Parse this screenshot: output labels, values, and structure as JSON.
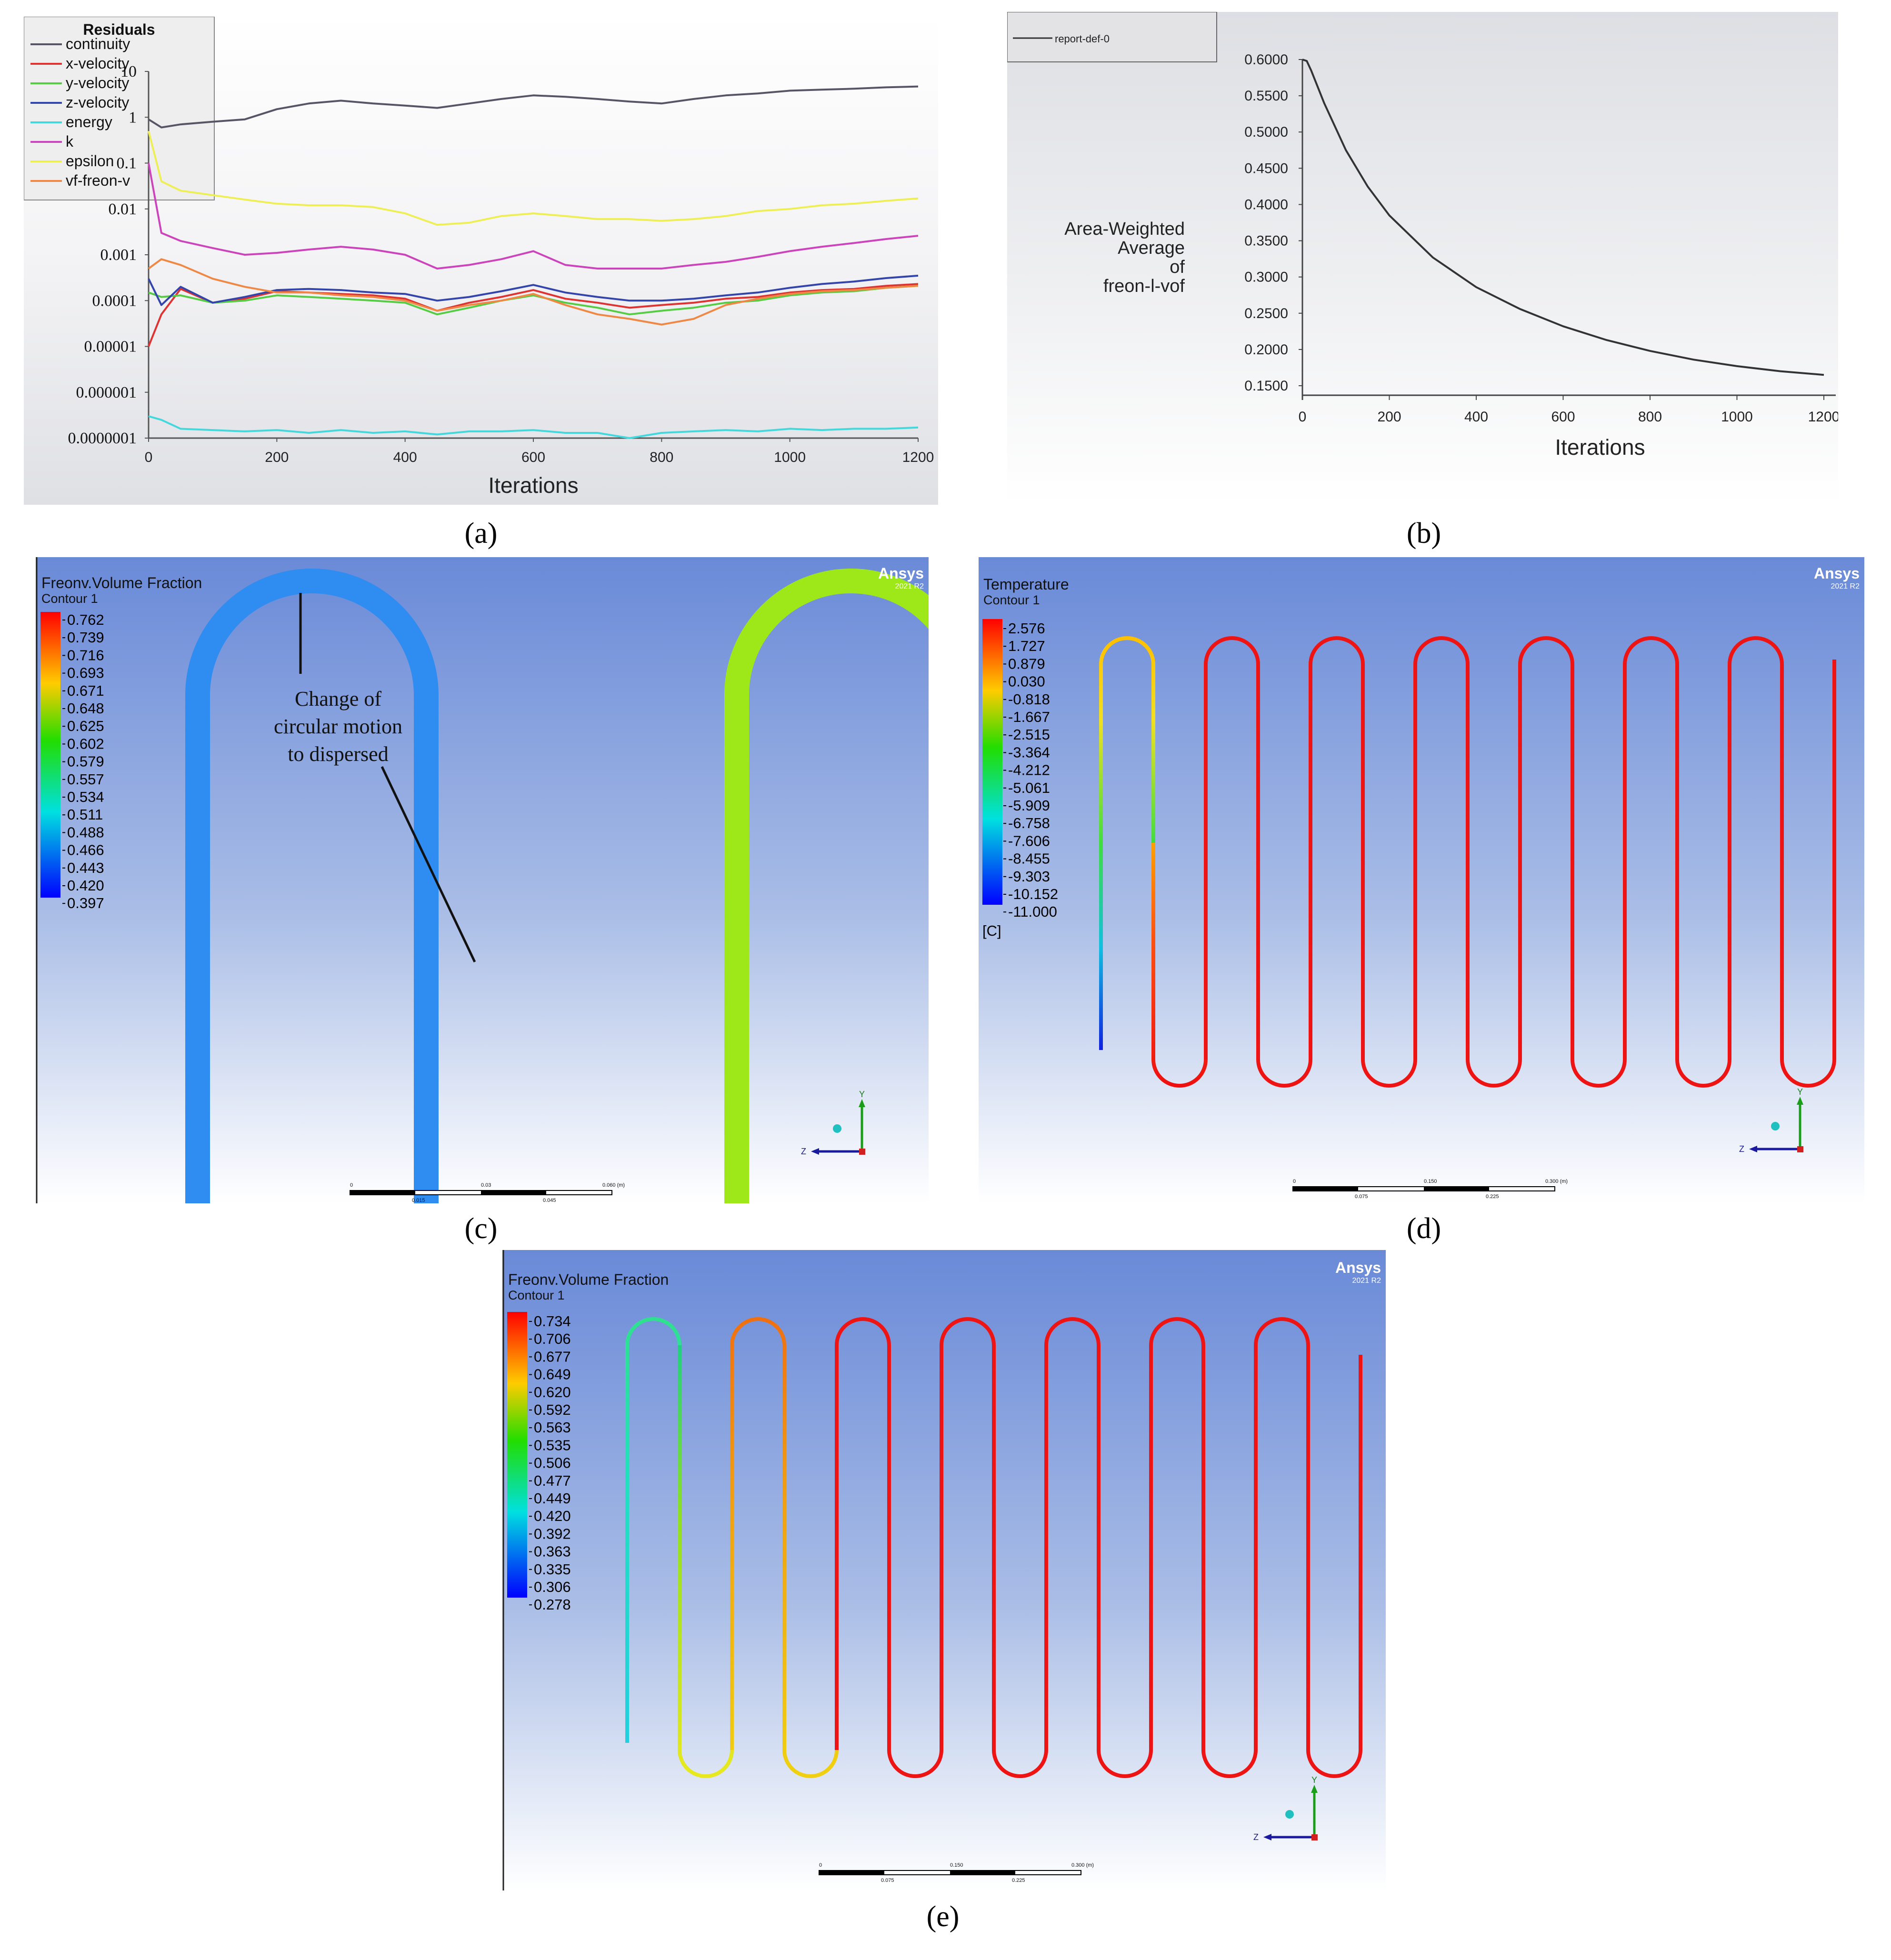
{
  "captions": {
    "a": "(a)",
    "b": "(b)",
    "c": "(c)",
    "d": "(d)",
    "e": "(e)"
  },
  "chart_data": [
    {
      "id": "a",
      "type": "line",
      "yscale": "log",
      "title": "Residuals",
      "xlabel": "Iterations",
      "ylabel": "",
      "xlim": [
        0,
        1200
      ],
      "ylim": [
        1e-07,
        10
      ],
      "x_ticks": [
        "0",
        "200",
        "400",
        "600",
        "800",
        "1000",
        "1200"
      ],
      "y_ticks": [
        "10",
        "1",
        "0.1",
        "0.01",
        "0.001",
        "0.0001",
        "0.00001",
        "0.000001",
        "0.0000001"
      ],
      "x": [
        0,
        20,
        50,
        100,
        150,
        200,
        250,
        300,
        350,
        400,
        450,
        500,
        550,
        600,
        650,
        700,
        750,
        800,
        850,
        900,
        950,
        1000,
        1050,
        1100,
        1150,
        1200
      ],
      "series": [
        {
          "name": "continuity",
          "color": "#555566",
          "values": [
            0.9,
            0.6,
            0.7,
            0.8,
            0.9,
            1.5,
            2,
            2.3,
            2,
            1.8,
            1.6,
            2,
            2.5,
            3,
            2.8,
            2.5,
            2.2,
            2,
            2.5,
            3,
            3.3,
            3.8,
            4,
            4.2,
            4.5,
            4.7
          ]
        },
        {
          "name": "x-velocity",
          "color": "#dd3333",
          "values": [
            1e-05,
            5e-05,
            0.00018,
            9e-05,
            0.00011,
            0.00016,
            0.00015,
            0.00014,
            0.00013,
            0.00011,
            6e-05,
            9e-05,
            0.00012,
            0.00017,
            0.00011,
            9e-05,
            7e-05,
            8e-05,
            9e-05,
            0.00011,
            0.00012,
            0.00015,
            0.00017,
            0.00018,
            0.00021,
            0.00023
          ]
        },
        {
          "name": "y-velocity",
          "color": "#55cc44",
          "values": [
            0.00015,
            0.00012,
            0.00013,
            9e-05,
            0.0001,
            0.00013,
            0.00012,
            0.00011,
            0.0001,
            9e-05,
            5e-05,
            7e-05,
            0.0001,
            0.00013,
            9e-05,
            7e-05,
            5e-05,
            6e-05,
            7e-05,
            9e-05,
            0.0001,
            0.00013,
            0.00015,
            0.00016,
            0.00019,
            0.00021
          ]
        },
        {
          "name": "z-velocity",
          "color": "#3344aa",
          "values": [
            0.0003,
            8e-05,
            0.0002,
            9e-05,
            0.00012,
            0.00017,
            0.00018,
            0.00017,
            0.00015,
            0.00014,
            0.0001,
            0.00012,
            0.00016,
            0.00022,
            0.00015,
            0.00012,
            0.0001,
            0.0001,
            0.00011,
            0.00013,
            0.00015,
            0.00019,
            0.00023,
            0.00026,
            0.00031,
            0.00035
          ]
        },
        {
          "name": "energy",
          "color": "#44d8dd",
          "values": [
            3e-07,
            2.5e-07,
            1.6e-07,
            1.5e-07,
            1.4e-07,
            1.5e-07,
            1.3e-07,
            1.5e-07,
            1.3e-07,
            1.4e-07,
            1.2e-07,
            1.4e-07,
            1.4e-07,
            1.5e-07,
            1.3e-07,
            1.3e-07,
            1e-07,
            1.3e-07,
            1.4e-07,
            1.5e-07,
            1.4e-07,
            1.6e-07,
            1.5e-07,
            1.6e-07,
            1.6e-07,
            1.7e-07
          ]
        },
        {
          "name": "k",
          "color": "#cc44bb",
          "values": [
            0.1,
            0.003,
            0.002,
            0.0014,
            0.001,
            0.0011,
            0.0013,
            0.0015,
            0.0013,
            0.001,
            0.0005,
            0.0006,
            0.0008,
            0.0012,
            0.0006,
            0.0005,
            0.0005,
            0.0005,
            0.0006,
            0.0007,
            0.0009,
            0.0012,
            0.0015,
            0.0018,
            0.0022,
            0.0026
          ]
        },
        {
          "name": "epsilon",
          "color": "#eeee55",
          "values": [
            0.5,
            0.04,
            0.025,
            0.02,
            0.016,
            0.013,
            0.012,
            0.012,
            0.011,
            0.008,
            0.0045,
            0.005,
            0.007,
            0.008,
            0.007,
            0.006,
            0.006,
            0.0055,
            0.006,
            0.007,
            0.009,
            0.01,
            0.012,
            0.013,
            0.015,
            0.017
          ]
        },
        {
          "name": "vf-freon-v",
          "color": "#ee8844",
          "values": [
            0.0005,
            0.0008,
            0.0006,
            0.0003,
            0.0002,
            0.00015,
            0.00015,
            0.00013,
            0.00012,
            0.0001,
            6e-05,
            8e-05,
            0.0001,
            0.00014,
            8e-05,
            5e-05,
            4e-05,
            3e-05,
            4e-05,
            8e-05,
            0.00011,
            0.00014,
            0.00016,
            0.00017,
            0.00019,
            0.00021
          ]
        }
      ]
    },
    {
      "id": "b",
      "type": "line",
      "title": "",
      "legend": [
        "report-def-0"
      ],
      "xlabel": "Iterations",
      "ylabel": "Area-Weighted Average of freon-l-vof",
      "ylabel_lines": [
        "Area-Weighted",
        "Average",
        "of",
        "freon-l-vof"
      ],
      "xlim": [
        0,
        1200
      ],
      "ylim": [
        0.15,
        0.6
      ],
      "x_ticks": [
        "0",
        "200",
        "400",
        "600",
        "800",
        "1000",
        "1200"
      ],
      "y_ticks": [
        "0.6000",
        "0.5500",
        "0.5000",
        "0.4500",
        "0.4000",
        "0.3500",
        "0.3000",
        "0.2500",
        "0.2000",
        "0.1500"
      ],
      "x": [
        0,
        10,
        20,
        50,
        100,
        150,
        200,
        300,
        400,
        500,
        600,
        700,
        800,
        900,
        1000,
        1100,
        1200
      ],
      "series": [
        {
          "name": "report-def-0",
          "color": "#333333",
          "values": [
            0.6,
            0.598,
            0.585,
            0.54,
            0.475,
            0.425,
            0.385,
            0.327,
            0.286,
            0.256,
            0.232,
            0.213,
            0.198,
            0.186,
            0.177,
            0.17,
            0.165
          ]
        }
      ]
    }
  ],
  "contour_c": {
    "title": "Freonv.Volume Fraction",
    "subtitle": "Contour 1",
    "levels": [
      "0.762",
      "0.739",
      "0.716",
      "0.693",
      "0.671",
      "0.648",
      "0.625",
      "0.602",
      "0.579",
      "0.557",
      "0.534",
      "0.511",
      "0.488",
      "0.466",
      "0.443",
      "0.420",
      "0.397"
    ],
    "annotation": [
      "Change of",
      "circular motion",
      "to dispersed"
    ],
    "brand": "Ansys",
    "version": "2021 R2",
    "scale_top": [
      "0",
      "0.03",
      "0.060 (m)"
    ],
    "scale_bottom": [
      "0.015",
      "0.045"
    ]
  },
  "contour_d": {
    "title": "Temperature",
    "subtitle": "Contour 1",
    "levels": [
      "2.576",
      "1.727",
      "0.879",
      "0.030",
      "-0.818",
      "-1.667",
      "-2.515",
      "-3.364",
      "-4.212",
      "-5.061",
      "-5.909",
      "-6.758",
      "-7.606",
      "-8.455",
      "-9.303",
      "-10.152",
      "-11.000"
    ],
    "unit": "[C]",
    "brand": "Ansys",
    "version": "2021 R2",
    "scale_top": [
      "0",
      "0.150",
      "0.300 (m)"
    ],
    "scale_bottom": [
      "0.075",
      "0.225"
    ]
  },
  "contour_e": {
    "title": "Freonv.Volume Fraction",
    "subtitle": "Contour 1",
    "levels": [
      "0.734",
      "0.706",
      "0.677",
      "0.649",
      "0.620",
      "0.592",
      "0.563",
      "0.535",
      "0.506",
      "0.477",
      "0.449",
      "0.420",
      "0.392",
      "0.363",
      "0.335",
      "0.306",
      "0.278"
    ],
    "brand": "Ansys",
    "version": "2021 R2",
    "scale_top": [
      "0",
      "0.150",
      "0.300 (m)"
    ],
    "scale_bottom": [
      "0.075",
      "0.225"
    ]
  },
  "axes_triad": {
    "y": "Y",
    "z": "Z"
  }
}
